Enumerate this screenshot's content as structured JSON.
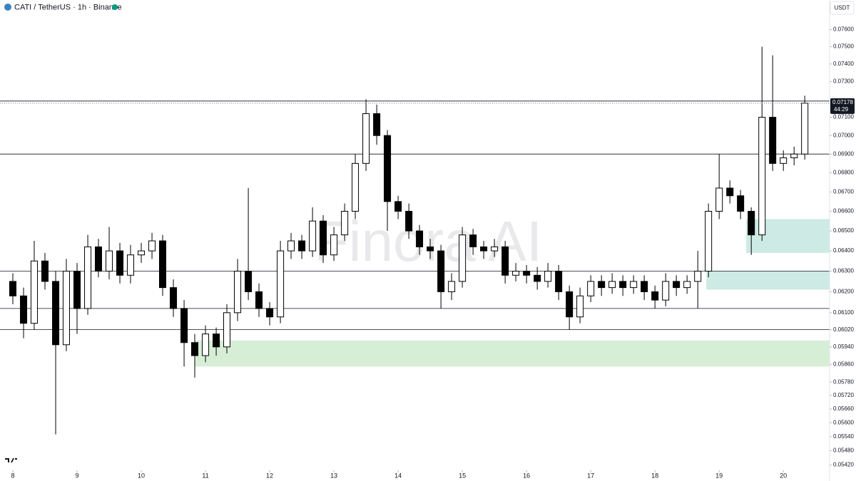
{
  "chart_data": {
    "type": "candlestick",
    "title": "CATI / TetherUS · 1h · Binance",
    "currency_button": "USDT",
    "watermark": "Finora AI",
    "countdown": "44:29",
    "log_scale": true,
    "up_color": "#ffffff",
    "down_color": "#000000",
    "x": [
      8,
      8.167,
      8.333,
      8.5,
      8.667,
      8.833,
      9,
      9.167,
      9.333,
      9.5,
      9.667,
      9.833,
      10,
      10.167,
      10.333,
      10.5,
      10.667,
      10.833,
      11,
      11.167,
      11.333,
      11.5,
      11.667,
      11.833,
      12,
      12.167,
      12.333,
      12.5,
      12.667,
      12.833,
      13,
      13.167,
      13.333,
      13.5,
      13.667,
      13.833,
      14,
      14.167,
      14.333,
      14.5,
      14.667,
      14.833,
      15,
      15.167,
      15.333,
      15.5,
      15.667,
      15.833,
      16,
      16.167,
      16.333,
      16.5,
      16.667,
      16.833,
      17,
      17.167,
      17.333,
      17.5,
      17.667,
      17.833,
      18,
      18.167,
      18.333,
      18.5,
      18.667,
      18.833,
      19,
      19.167,
      19.333,
      19.5,
      19.667,
      19.833,
      20,
      20.167,
      20.333
    ],
    "open": [
      0.0625,
      0.0618,
      0.0605,
      0.0635,
      0.0625,
      0.0595,
      0.063,
      0.0612,
      0.0642,
      0.063,
      0.064,
      0.0628,
      0.0638,
      0.064,
      0.0645,
      0.0622,
      0.0612,
      0.0596,
      0.059,
      0.06,
      0.0594,
      0.061,
      0.063,
      0.062,
      0.0612,
      0.0608,
      0.064,
      0.0645,
      0.064,
      0.0655,
      0.0638,
      0.0648,
      0.066,
      0.0685,
      0.0712,
      0.07,
      0.0665,
      0.066,
      0.065,
      0.0642,
      0.064,
      0.062,
      0.0625,
      0.0648,
      0.0642,
      0.064,
      0.0642,
      0.0628,
      0.063,
      0.0628,
      0.0625,
      0.063,
      0.062,
      0.0608,
      0.0618,
      0.0625,
      0.0622,
      0.0625,
      0.0622,
      0.0625,
      0.062,
      0.0616,
      0.0625,
      0.0622,
      0.0625,
      0.063,
      0.066,
      0.0672,
      0.0668,
      0.066,
      0.0648,
      0.071,
      0.0685,
      0.0688,
      0.069
    ],
    "high": [
      0.0629,
      0.0622,
      0.0645,
      0.0639,
      0.063,
      0.0636,
      0.0634,
      0.0648,
      0.0646,
      0.0652,
      0.0644,
      0.0643,
      0.0644,
      0.0649,
      0.0648,
      0.0626,
      0.0616,
      0.06,
      0.0604,
      0.0603,
      0.0614,
      0.0636,
      0.0672,
      0.0624,
      0.0615,
      0.0645,
      0.0649,
      0.0648,
      0.0662,
      0.0658,
      0.0652,
      0.0664,
      0.069,
      0.072,
      0.0717,
      0.0703,
      0.0668,
      0.0664,
      0.0653,
      0.0646,
      0.0643,
      0.0629,
      0.0652,
      0.0651,
      0.0645,
      0.0646,
      0.0645,
      0.0634,
      0.0633,
      0.0632,
      0.0634,
      0.0633,
      0.0623,
      0.0622,
      0.0628,
      0.0628,
      0.0629,
      0.0628,
      0.0628,
      0.0628,
      0.0623,
      0.0629,
      0.0628,
      0.0628,
      0.064,
      0.0664,
      0.069,
      0.0676,
      0.0671,
      0.0662,
      0.075,
      0.0745,
      0.0692,
      0.0694,
      0.0722
    ],
    "low": [
      0.0614,
      0.0598,
      0.0602,
      0.0621,
      0.0555,
      0.0592,
      0.06,
      0.0609,
      0.0627,
      0.0626,
      0.0624,
      0.0624,
      0.0634,
      0.0636,
      0.0618,
      0.0608,
      0.0585,
      0.058,
      0.0587,
      0.059,
      0.0591,
      0.0606,
      0.0616,
      0.0608,
      0.0604,
      0.0605,
      0.0636,
      0.0636,
      0.0637,
      0.0634,
      0.0635,
      0.0645,
      0.0656,
      0.0681,
      0.0695,
      0.065,
      0.0656,
      0.0646,
      0.0638,
      0.0636,
      0.0612,
      0.0616,
      0.0622,
      0.0638,
      0.0636,
      0.0637,
      0.0624,
      0.0625,
      0.0624,
      0.0621,
      0.0622,
      0.0616,
      0.0602,
      0.0605,
      0.0615,
      0.0618,
      0.0619,
      0.0618,
      0.0619,
      0.0616,
      0.0612,
      0.0613,
      0.0618,
      0.0619,
      0.0612,
      0.0627,
      0.0656,
      0.0664,
      0.0656,
      0.0638,
      0.0645,
      0.0681,
      0.0681,
      0.0684,
      0.0687
    ],
    "close": [
      0.0618,
      0.0605,
      0.0635,
      0.0625,
      0.0595,
      0.063,
      0.0612,
      0.0642,
      0.063,
      0.064,
      0.0628,
      0.0638,
      0.064,
      0.0645,
      0.0622,
      0.0612,
      0.0596,
      0.059,
      0.06,
      0.0594,
      0.061,
      0.063,
      0.062,
      0.0612,
      0.0608,
      0.064,
      0.0645,
      0.064,
      0.0655,
      0.0638,
      0.0648,
      0.066,
      0.0685,
      0.0712,
      0.07,
      0.0665,
      0.066,
      0.065,
      0.0642,
      0.064,
      0.062,
      0.0625,
      0.0648,
      0.0642,
      0.064,
      0.0642,
      0.0628,
      0.063,
      0.0628,
      0.0625,
      0.063,
      0.062,
      0.0608,
      0.0618,
      0.0625,
      0.0622,
      0.0625,
      0.0622,
      0.0625,
      0.062,
      0.0616,
      0.0625,
      0.0622,
      0.0625,
      0.063,
      0.066,
      0.0672,
      0.0668,
      0.066,
      0.0648,
      0.071,
      0.0685,
      0.0688,
      0.069,
      0.07178
    ],
    "levels": [
      0.0719,
      0.069,
      0.063,
      0.0612,
      0.0602
    ],
    "level_color": "#131722",
    "zones": [
      {
        "from": 10.83,
        "top": 0.0597,
        "bottom": 0.0585,
        "color": "#d6eed6"
      },
      {
        "from": 18.8,
        "top": 0.063,
        "bottom": 0.0621,
        "color": "#cdebe4"
      },
      {
        "from": 19.42,
        "top": 0.0656,
        "bottom": 0.0639,
        "color": "#cdebe4"
      }
    ],
    "xlim": [
      7.8,
      20.72
    ],
    "ylim": [
      0.054,
      0.077
    ],
    "xticks": [
      8,
      9,
      10,
      11,
      12,
      13,
      14,
      15,
      16,
      17,
      18,
      19,
      20
    ],
    "yticks": [
      {
        "value": 0.076,
        "label": "0.07600"
      },
      {
        "value": 0.075,
        "label": "0.07500"
      },
      {
        "value": 0.074,
        "label": "0.07400"
      },
      {
        "value": 0.073,
        "label": "0.07300"
      },
      {
        "value": 0.071,
        "label": "0.07100"
      },
      {
        "value": 0.07,
        "label": "0.07000"
      },
      {
        "value": 0.069,
        "label": "0.06900"
      },
      {
        "value": 0.068,
        "label": "0.06800"
      },
      {
        "value": 0.067,
        "label": "0.06700"
      },
      {
        "value": 0.066,
        "label": "0.06600"
      },
      {
        "value": 0.065,
        "label": "0.06500"
      },
      {
        "value": 0.064,
        "label": "0.06400"
      },
      {
        "value": 0.063,
        "label": "0.06300"
      },
      {
        "value": 0.062,
        "label": "0.06200"
      },
      {
        "value": 0.061,
        "label": "0.06100"
      },
      {
        "value": 0.0602,
        "label": "0.06020"
      },
      {
        "value": 0.0594,
        "label": "0.05940"
      },
      {
        "value": 0.0586,
        "label": "0.05860"
      },
      {
        "value": 0.0578,
        "label": "0.05780"
      },
      {
        "value": 0.0572,
        "label": "0.05720"
      },
      {
        "value": 0.0566,
        "label": "0.05660"
      },
      {
        "value": 0.056,
        "label": "0.05600"
      },
      {
        "value": 0.0554,
        "label": "0.05540"
      },
      {
        "value": 0.0548,
        "label": "0.05480"
      },
      {
        "value": 0.0542,
        "label": "0.05420"
      }
    ]
  }
}
